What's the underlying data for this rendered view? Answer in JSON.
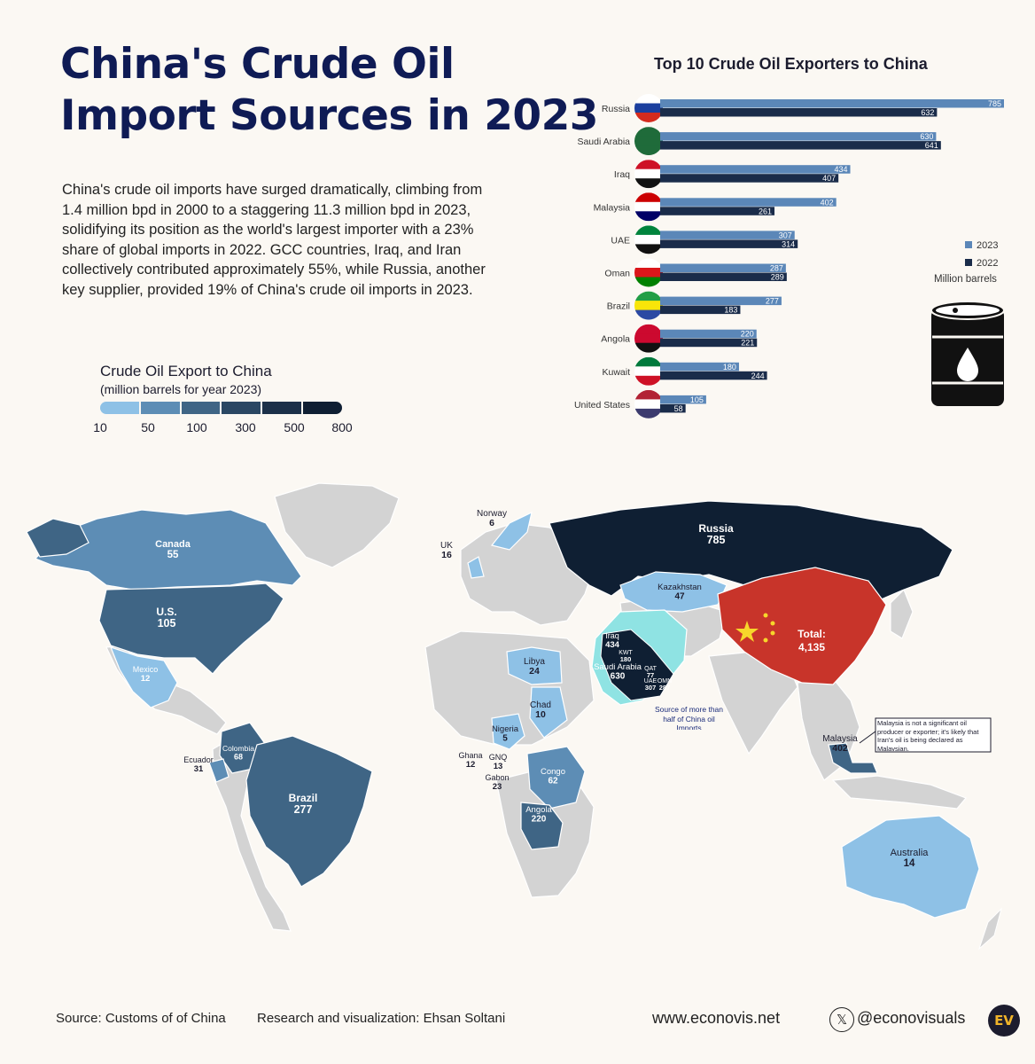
{
  "header": {
    "title_line1": "China's Crude Oil",
    "title_line2": "Import Sources in 2023",
    "intro": "China's crude oil imports have surged dramatically, climbing from 1.4 million bpd in 2000 to a staggering 11.3 million bpd in 2023, solidifying its position as the world's largest importer with a 23% share of global imports in 2022. GCC countries, Iraq, and Iran collectively contributed approximately 55%, while Russia, another key supplier, provided 19% of China's crude oil imports in 2023."
  },
  "scale": {
    "title": "Crude Oil Export to China",
    "subtitle": "(million barrels for year 2023)",
    "ticks": [
      "10",
      "50",
      "100",
      "300",
      "500",
      "800"
    ],
    "colors": [
      "#8ec1e6",
      "#5d8db5",
      "#3f6585",
      "#2a4763",
      "#1b3049",
      "#0f1f33"
    ]
  },
  "chart_data": [
    {
      "type": "bar",
      "title": "Top 10 Crude Oil Exporters to China",
      "categories": [
        "Russia",
        "Saudi Arabia",
        "Iraq",
        "Malaysia",
        "UAE",
        "Oman",
        "Brazil",
        "Angola",
        "Kuwait",
        "United States"
      ],
      "series": [
        {
          "name": "2023",
          "color": "#5b87b8",
          "values": [
            785,
            630,
            434,
            402,
            307,
            287,
            277,
            220,
            180,
            105
          ]
        },
        {
          "name": "2022",
          "color": "#1a2c4a",
          "values": [
            632,
            641,
            407,
            261,
            314,
            289,
            183,
            221,
            244,
            58
          ]
        }
      ],
      "unit_note": "Million barrels",
      "legend_position": "right"
    }
  ],
  "map": {
    "china": {
      "label": "Total:",
      "value": "4,135",
      "color": "#c8342a"
    },
    "countries": [
      {
        "name": "Russia",
        "value": "785"
      },
      {
        "name": "Canada",
        "value": "55"
      },
      {
        "name": "U.S.",
        "value": "105"
      },
      {
        "name": "Mexico",
        "value": "12"
      },
      {
        "name": "Brazil",
        "value": "277"
      },
      {
        "name": "Colombia",
        "value": "68"
      },
      {
        "name": "Ecuador",
        "value": "31"
      },
      {
        "name": "Norway",
        "value": "6"
      },
      {
        "name": "UK",
        "value": "16"
      },
      {
        "name": "Kazakhstan",
        "value": "47"
      },
      {
        "name": "Libya",
        "value": "24"
      },
      {
        "name": "Chad",
        "value": "10"
      },
      {
        "name": "Nigeria",
        "value": "5"
      },
      {
        "name": "Ghana",
        "value": "12"
      },
      {
        "name": "GNQ",
        "value": "13"
      },
      {
        "name": "Gabon",
        "value": "23"
      },
      {
        "name": "Congo",
        "value": "62"
      },
      {
        "name": "Angola",
        "value": "220"
      },
      {
        "name": "Malaysia",
        "value": "402"
      },
      {
        "name": "Australia",
        "value": "14"
      },
      {
        "name": "Iraq",
        "value": "434"
      },
      {
        "name": "Saudi Arabia",
        "value": "630"
      },
      {
        "name": "KWT",
        "value": "180"
      },
      {
        "name": "QAT",
        "value": "77"
      },
      {
        "name": "UAE",
        "value": "307"
      },
      {
        "name": "OMN",
        "value": "287"
      }
    ],
    "gulf_note": "Source of more than half of China oil Imports",
    "malaysia_note": "Malaysia is not a significant oil producer or exporter; it's likely that Iran's oil is being declared as Malaysian."
  },
  "footer": {
    "source": "Source: Customs of of China",
    "credit": "Research and visualization: Ehsan Soltani",
    "website": "www.econovis.net",
    "handle": "@econovisuals",
    "logo": "EV"
  },
  "icons": [
    "oil-barrel-icon",
    "x-logo-icon",
    "flag-icons"
  ]
}
